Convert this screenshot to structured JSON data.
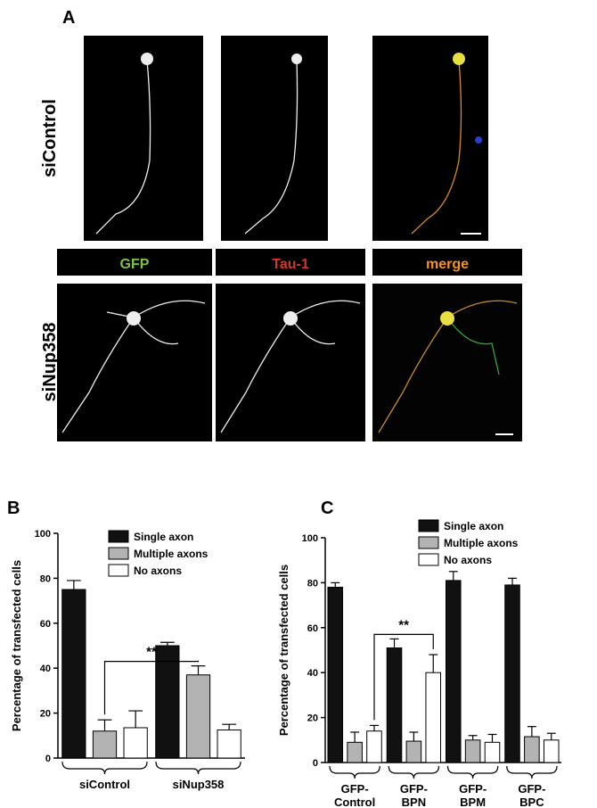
{
  "panel_a": {
    "label": "A",
    "rows": [
      "siControl",
      "siNup358"
    ],
    "channels": [
      "GFP",
      "Tau-1",
      "merge"
    ]
  },
  "chart_data": [
    {
      "type": "bar",
      "panel": "B",
      "ylabel": "Percentage of transfected cells",
      "annotation": "**",
      "categories": [
        "siControl",
        "siNup358"
      ],
      "series": [
        {
          "name": "Single axon",
          "color": "#111111",
          "values": [
            75,
            50
          ],
          "errors": [
            4,
            1.5
          ]
        },
        {
          "name": "Multiple axons",
          "color": "#b3b3b3",
          "values": [
            12,
            37
          ],
          "errors": [
            5,
            4
          ]
        },
        {
          "name": "No axons",
          "color": "#ffffff",
          "values": [
            13.5,
            12.5
          ],
          "errors": [
            7.5,
            2.5
          ]
        }
      ],
      "ylim": [
        0,
        100
      ],
      "yticks": [
        0,
        20,
        40,
        60,
        80,
        100
      ]
    },
    {
      "type": "bar",
      "panel": "C",
      "ylabel": "Percentage of transfected cells",
      "annotation": "**",
      "categories": [
        "GFP-Control",
        "GFP-BPN",
        "GFP-BPM",
        "GFP-BPC"
      ],
      "series": [
        {
          "name": "Single axon",
          "color": "#111111",
          "values": [
            78,
            51,
            81,
            79
          ],
          "errors": [
            2,
            4,
            4,
            3
          ]
        },
        {
          "name": "Multiple axons",
          "color": "#b3b3b3",
          "values": [
            9,
            9.5,
            10,
            11.5
          ],
          "errors": [
            4.5,
            4,
            2,
            4.5
          ]
        },
        {
          "name": "No axons",
          "color": "#ffffff",
          "values": [
            14,
            40,
            9,
            10
          ],
          "errors": [
            2.5,
            8,
            3.5,
            3
          ]
        }
      ],
      "ylim": [
        0,
        100
      ],
      "yticks": [
        0,
        20,
        40,
        60,
        80,
        100
      ]
    }
  ]
}
